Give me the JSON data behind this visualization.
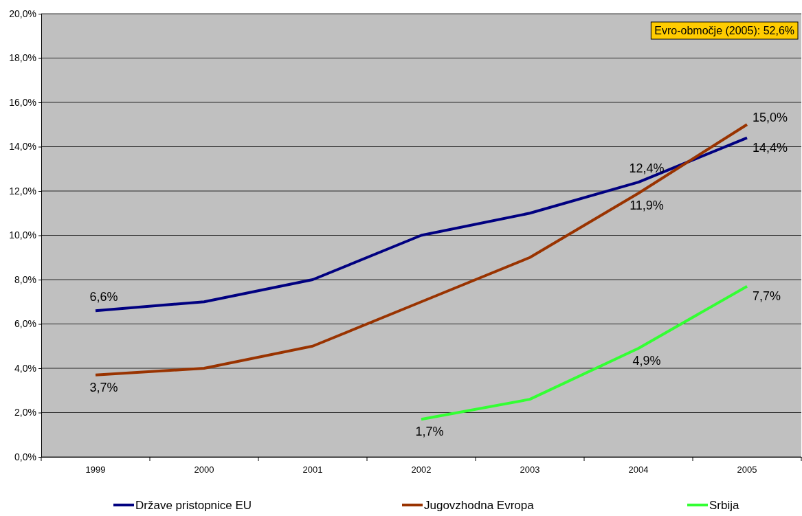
{
  "chart_data": {
    "type": "line",
    "categories": [
      "1999",
      "2000",
      "2001",
      "2002",
      "2003",
      "2004",
      "2005"
    ],
    "series": [
      {
        "name": "Države pristopnice EU",
        "color": "#000080",
        "values": [
          6.6,
          7.0,
          8.0,
          10.0,
          11.0,
          12.4,
          14.4
        ],
        "value_labels": [
          "6,6%",
          null,
          null,
          null,
          null,
          "12,4%",
          "14,4%"
        ]
      },
      {
        "name": "Jugovzhodna Evropa",
        "color": "#993300",
        "values": [
          3.7,
          4.0,
          5.0,
          7.0,
          9.0,
          11.9,
          15.0
        ],
        "value_labels": [
          "3,7%",
          null,
          null,
          null,
          null,
          "11,9%",
          "15,0%"
        ]
      },
      {
        "name": "Srbija",
        "color": "#33ff33",
        "values": [
          null,
          null,
          null,
          1.7,
          2.6,
          4.9,
          7.7
        ],
        "value_labels": [
          null,
          null,
          null,
          "1,7%",
          null,
          "4,9%",
          "7,7%"
        ]
      }
    ],
    "ylim": [
      0,
      20
    ],
    "yticks": [
      {
        "value": 0,
        "label": "0,0%"
      },
      {
        "value": 2,
        "label": "2,0%"
      },
      {
        "value": 4,
        "label": "4,0%"
      },
      {
        "value": 6,
        "label": "6,0%"
      },
      {
        "value": 8,
        "label": "8,0%"
      },
      {
        "value": 10,
        "label": "10,0%"
      },
      {
        "value": 12,
        "label": "12,0%"
      },
      {
        "value": 14,
        "label": "14,0%"
      },
      {
        "value": 16,
        "label": "16,0%"
      },
      {
        "value": 18,
        "label": "18,0%"
      },
      {
        "value": 20,
        "label": "20,0%"
      }
    ],
    "grid": "y",
    "legend": "bottom",
    "marker": "none",
    "line_style": "solid",
    "annotations": [
      "Evro-območje (2005): 52,6%"
    ]
  }
}
